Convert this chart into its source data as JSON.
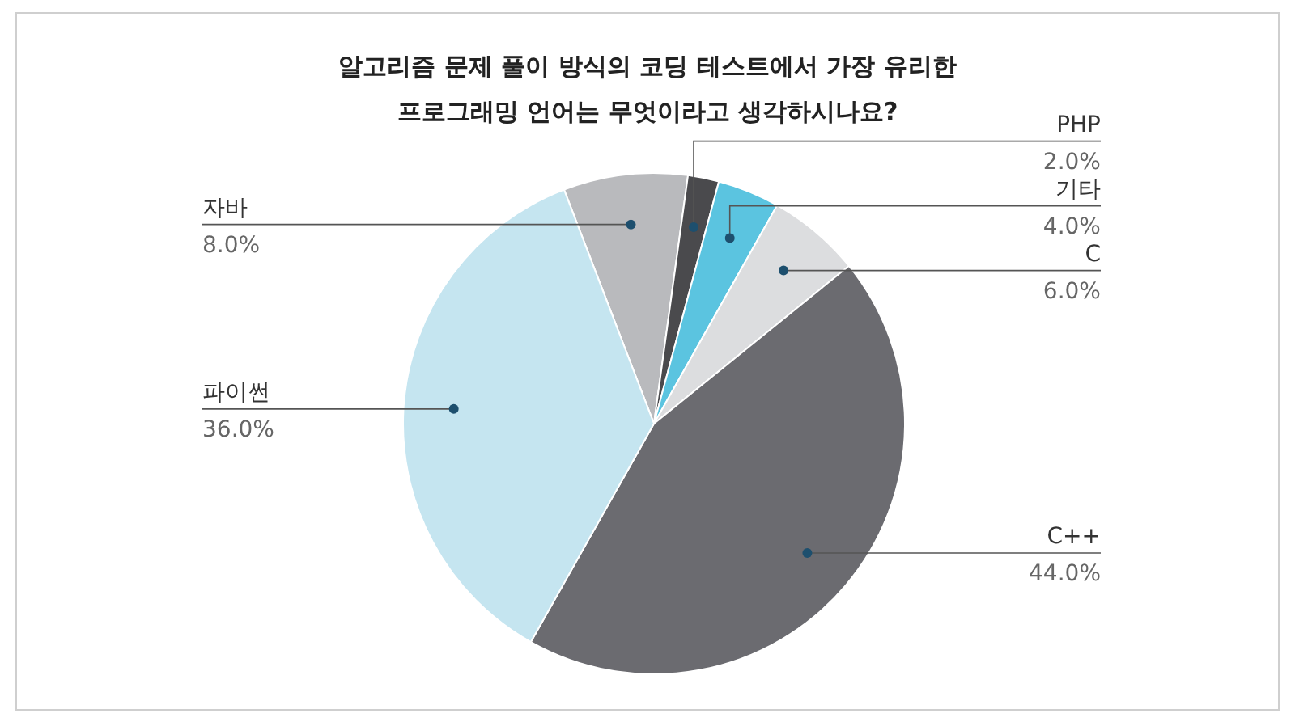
{
  "chart_data": {
    "type": "pie",
    "title": "알고리즘 문제 풀이 방식의 코딩 테스트에서 가장 유리한\n프로그래밍 언어는 무엇이라고 생각하시나요?",
    "categories": [
      "자바",
      "PHP",
      "기타",
      "C",
      "C++",
      "파이썬"
    ],
    "values": [
      8,
      2,
      4,
      6,
      44,
      36
    ],
    "value_labels": [
      "8.0%",
      "2.0%",
      "4.0%",
      "6.0%",
      "44.0%",
      "36.0%"
    ],
    "colors": [
      "#b9babd",
      "#4a4a4d",
      "#5bc4e0",
      "#dcdddf",
      "#6b6b70",
      "#c5e5f0"
    ]
  }
}
